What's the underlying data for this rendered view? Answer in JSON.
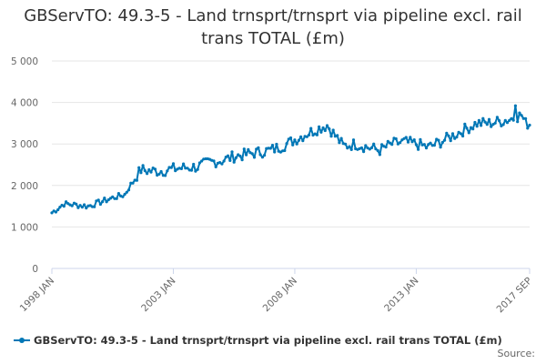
{
  "chart_data": {
    "type": "line",
    "title": "GBServTO: 49.3-5 - Land trnsprt/trnsprt via pipeline excl. rail trans TOTAL (£m)",
    "xlabel": "",
    "ylabel": "",
    "ylim": [
      0,
      5000
    ],
    "yticks": [
      0,
      1000,
      2000,
      3000,
      4000,
      5000
    ],
    "ytick_labels": [
      "0",
      "1 000",
      "2 000",
      "3 000",
      "4 000",
      "5 000"
    ],
    "x_range": [
      "1998 JAN",
      "2017 SEP"
    ],
    "xtick_labels": [
      "1998 JAN",
      "2003 JAN",
      "2008 JAN",
      "2013 JAN",
      "2017 SEP"
    ],
    "grid": true,
    "legend_position": "bottom-left",
    "series": [
      {
        "name": "GBServTO: 49.3-5 - Land trnsprt/trnsprt via pipeline excl. rail trans TOTAL (£m)",
        "color": "#0077b6",
        "frequency": "monthly",
        "start": "1998-01",
        "end": "2017-09",
        "anchor_points": [
          {
            "t": 0,
            "v": 1340
          },
          {
            "t": 6,
            "v": 1560
          },
          {
            "t": 12,
            "v": 1530
          },
          {
            "t": 18,
            "v": 1500
          },
          {
            "t": 24,
            "v": 1600
          },
          {
            "t": 30,
            "v": 1700
          },
          {
            "t": 36,
            "v": 1780
          },
          {
            "t": 40,
            "v": 2100
          },
          {
            "t": 44,
            "v": 2380
          },
          {
            "t": 48,
            "v": 2350
          },
          {
            "t": 54,
            "v": 2350
          },
          {
            "t": 60,
            "v": 2400
          },
          {
            "t": 66,
            "v": 2430
          },
          {
            "t": 72,
            "v": 2450
          },
          {
            "t": 78,
            "v": 2560
          },
          {
            "t": 84,
            "v": 2600
          },
          {
            "t": 90,
            "v": 2700
          },
          {
            "t": 96,
            "v": 2750
          },
          {
            "t": 102,
            "v": 2800
          },
          {
            "t": 108,
            "v": 2850
          },
          {
            "t": 114,
            "v": 2950
          },
          {
            "t": 120,
            "v": 3100
          },
          {
            "t": 126,
            "v": 3250
          },
          {
            "t": 132,
            "v": 3380
          },
          {
            "t": 136,
            "v": 3450
          },
          {
            "t": 140,
            "v": 3200
          },
          {
            "t": 144,
            "v": 2950
          },
          {
            "t": 150,
            "v": 3000
          },
          {
            "t": 156,
            "v": 2920
          },
          {
            "t": 162,
            "v": 2850
          },
          {
            "t": 168,
            "v": 3000
          },
          {
            "t": 174,
            "v": 3050
          },
          {
            "t": 180,
            "v": 3000
          },
          {
            "t": 186,
            "v": 2920
          },
          {
            "t": 192,
            "v": 3050
          },
          {
            "t": 198,
            "v": 3200
          },
          {
            "t": 204,
            "v": 3350
          },
          {
            "t": 210,
            "v": 3500
          },
          {
            "t": 216,
            "v": 3500
          },
          {
            "t": 222,
            "v": 3550
          },
          {
            "t": 228,
            "v": 3620
          },
          {
            "t": 232,
            "v": 3700
          },
          {
            "t": 234,
            "v": 3500
          },
          {
            "t": 236,
            "v": 3480
          }
        ]
      }
    ]
  },
  "legend": {
    "label": "GBServTO: 49.3-5 - Land trnsprt/trnsprt via pipeline excl. rail trans TOTAL (£m)"
  },
  "source_label": "Source:"
}
